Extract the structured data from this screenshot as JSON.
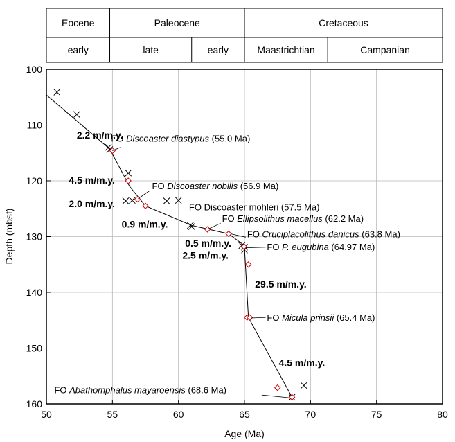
{
  "chart_data": {
    "type": "scatter",
    "xlabel": "Age (Ma)",
    "ylabel": "Depth (mbsf)",
    "xlim": [
      50,
      80
    ],
    "ylim": [
      160,
      100
    ],
    "x_ticks": [
      50,
      55,
      60,
      65,
      70,
      75,
      80
    ],
    "y_ticks": [
      100,
      110,
      120,
      130,
      140,
      150,
      160
    ],
    "grid": true,
    "epochs": [
      {
        "label": "Eocene",
        "from": 50,
        "to": 54.8
      },
      {
        "label": "Paleocene",
        "from": 54.8,
        "to": 65
      },
      {
        "label": "Cretaceous",
        "from": 65,
        "to": 80
      }
    ],
    "subepochs": [
      {
        "label": "early",
        "from": 50,
        "to": 54.8
      },
      {
        "label": "late",
        "from": 54.8,
        "to": 61
      },
      {
        "label": "early",
        "from": 61,
        "to": 65
      },
      {
        "label": "Maastrichtian",
        "from": 65,
        "to": 71.3
      },
      {
        "label": "Campanian",
        "from": 71.3,
        "to": 80
      }
    ],
    "series": [
      {
        "marker": "x",
        "color": "#000000",
        "points": [
          [
            50.8,
            104.1
          ],
          [
            52.3,
            108.1
          ],
          [
            54.7,
            114.0
          ],
          [
            54.8,
            114.4
          ],
          [
            56.2,
            118.6
          ],
          [
            56.0,
            123.6
          ],
          [
            56.5,
            123.5
          ],
          [
            59.1,
            123.6
          ],
          [
            60.0,
            123.5
          ],
          [
            60.9,
            128.0
          ],
          [
            61.0,
            128.2
          ],
          [
            64.8,
            131.6
          ],
          [
            65.0,
            132.4
          ],
          [
            65.0,
            131.9
          ],
          [
            69.5,
            156.7
          ],
          [
            68.6,
            158.8
          ]
        ]
      },
      {
        "marker": "diamond",
        "color": "#cc0000",
        "points": [
          [
            55.0,
            114.6
          ],
          [
            56.2,
            120.0
          ],
          [
            56.9,
            123.3
          ],
          [
            57.5,
            124.5
          ],
          [
            62.2,
            128.7
          ],
          [
            63.8,
            129.5
          ],
          [
            64.97,
            131.8
          ],
          [
            65.3,
            135.0
          ],
          [
            65.2,
            144.5
          ],
          [
            65.4,
            144.5
          ],
          [
            67.5,
            157.1
          ],
          [
            68.6,
            158.8
          ]
        ]
      }
    ],
    "line": [
      [
        50.0,
        104.6
      ],
      [
        54.8,
        114.3
      ],
      [
        56.3,
        121.0
      ],
      [
        57.5,
        124.5
      ],
      [
        61.0,
        128.0
      ],
      [
        63.8,
        129.5
      ],
      [
        65.0,
        131.6
      ],
      [
        65.0,
        132.0
      ],
      [
        65.3,
        144.5
      ],
      [
        68.6,
        158.8
      ]
    ],
    "annotations": [
      {
        "pre": "FO ",
        "italic": "Discoaster diastypus",
        "post": " (55.0 Ma)",
        "x": 54.9,
        "y": 113.0,
        "ptr": [
          55.6,
          114.0,
          55.0,
          114.6
        ]
      },
      {
        "pre": "FO ",
        "italic": "Discoaster nobilis",
        "post": " (56.9 Ma)",
        "x": 58.0,
        "y": 121.5,
        "ptr": [
          57.8,
          121.8,
          56.95,
          123.2
        ]
      },
      {
        "pre": "",
        "italic": "",
        "post": "FO Discoaster mohleri (57.5 Ma)",
        "x": 60.8,
        "y": 125.3,
        "ptr": []
      },
      {
        "pre": "FO ",
        "italic": "Ellipsolithus macellus",
        "post": " (62.2 Ma)",
        "x": 63.3,
        "y": 127.3,
        "ptr": [
          63.2,
          127.6,
          62.3,
          128.6
        ]
      },
      {
        "pre": "FO ",
        "italic": "Cruciplacolithus danicus",
        "post": " (63.8 Ma)",
        "x": 65.2,
        "y": 130.1,
        "ptr": [
          65.1,
          130.1,
          63.95,
          129.5
        ]
      },
      {
        "pre": "FO ",
        "italic": "P. eugubina",
        "post": "  (64.97 Ma)",
        "x": 66.7,
        "y": 132.4,
        "ptr": [
          66.6,
          131.9,
          65.1,
          132.0
        ]
      },
      {
        "pre": "FO ",
        "italic": "Micula prinsii",
        "post": " (65.4 Ma)",
        "x": 66.7,
        "y": 145.1,
        "ptr": [
          66.6,
          144.5,
          65.5,
          144.6
        ]
      },
      {
        "pre": "FO ",
        "italic": "Abathomphalus mayaroensis",
        "post": " (68.6 Ma)",
        "x": 50.6,
        "y": 158.1,
        "ptr": [
          66.3,
          158.4,
          68.4,
          158.9
        ]
      }
    ],
    "rate_labels": [
      {
        "text": "2.2 m/m.y.",
        "x": 52.3,
        "y": 112.4
      },
      {
        "text": "4.5 m/m.y.",
        "x": 51.7,
        "y": 120.5
      },
      {
        "text": "2.0 m/m.y.",
        "x": 51.7,
        "y": 124.7
      },
      {
        "text": "0.9 m/m.y.",
        "x": 55.7,
        "y": 128.4
      },
      {
        "text": "0.5 m/m.y.",
        "x": 60.5,
        "y": 131.8
      },
      {
        "text": "2.5 m/m.y.",
        "x": 60.3,
        "y": 134.0
      },
      {
        "text": "29.5 m/m.y.",
        "x": 65.8,
        "y": 139.1
      },
      {
        "text": "4.5 m/m.y.",
        "x": 67.6,
        "y": 153.2
      }
    ]
  }
}
